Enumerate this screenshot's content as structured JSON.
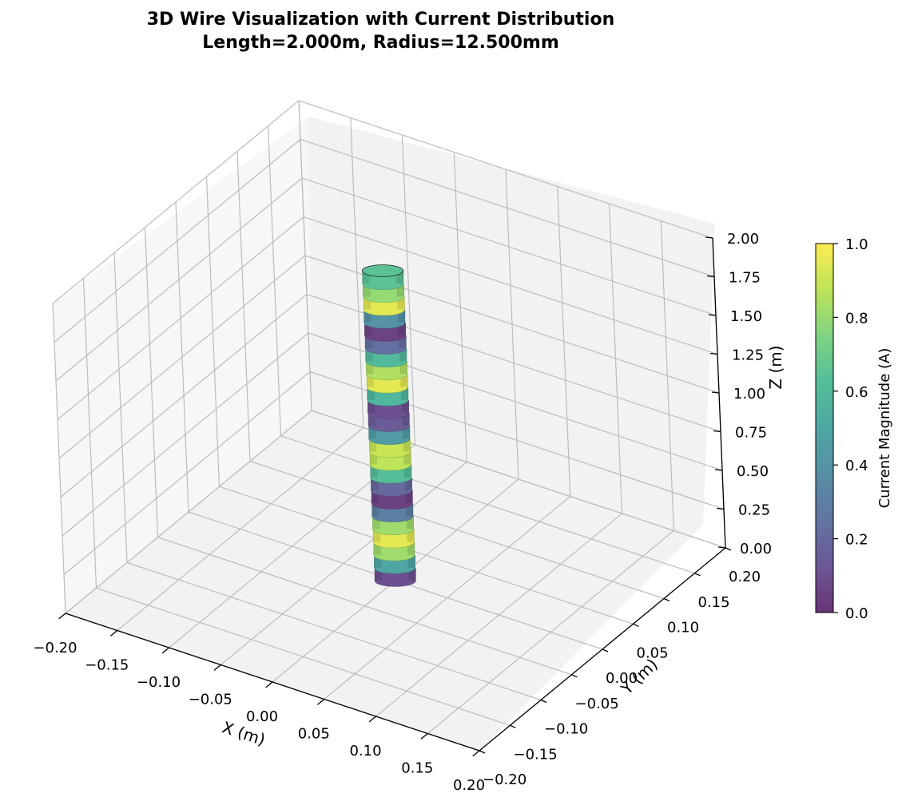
{
  "chart_data": {
    "type": "3d-surface",
    "title": "3D Wire Visualization with Current Distribution",
    "subtitle": "Length=2.000m, Radius=12.500mm",
    "xlabel": "X (m)",
    "ylabel": "Y (m)",
    "zlabel": "Z (m)",
    "xlim": [
      -0.2,
      0.2
    ],
    "ylim": [
      -0.2,
      0.2
    ],
    "zlim": [
      0.0,
      2.0
    ],
    "x_ticks": [
      -0.2,
      -0.15,
      -0.1,
      -0.05,
      0.0,
      0.05,
      0.1,
      0.15,
      0.2
    ],
    "y_ticks": [
      -0.2,
      -0.15,
      -0.1,
      -0.05,
      0.0,
      0.05,
      0.1,
      0.15,
      0.2
    ],
    "z_ticks": [
      0.0,
      0.25,
      0.5,
      0.75,
      1.0,
      1.25,
      1.5,
      1.75,
      2.0
    ],
    "x_tick_labels": [
      "−0.20",
      "−0.15",
      "−0.10",
      "−0.05",
      "0.00",
      "0.05",
      "0.10",
      "0.15",
      "0.20"
    ],
    "y_tick_labels": [
      "−0.20",
      "−0.15",
      "−0.10",
      "−0.05",
      "0.00",
      "0.05",
      "0.10",
      "0.15",
      "0.20"
    ],
    "z_tick_labels": [
      "0.00",
      "0.25",
      "0.50",
      "0.75",
      "1.00",
      "1.25",
      "1.50",
      "1.75",
      "2.00"
    ],
    "grid": true,
    "wire": {
      "length_m": 2.0,
      "radius_m": 0.0125,
      "center_x": 0.0,
      "center_y": 0.0,
      "segment_values": [
        0.1,
        0.5,
        0.82,
        0.95,
        0.82,
        0.3,
        0.05,
        0.2,
        0.62,
        0.88,
        0.9,
        0.45,
        0.15,
        0.1,
        0.58,
        0.95,
        0.85,
        0.6,
        0.22,
        0.05,
        0.4,
        0.95,
        0.8,
        0.65
      ]
    },
    "colorbar": {
      "label": "Current Magnitude (A)",
      "colormap": "viridis",
      "alpha": 0.8,
      "range": [
        0.0,
        1.0
      ],
      "ticks": [
        0.0,
        0.2,
        0.4,
        0.6,
        0.8,
        1.0
      ],
      "tick_labels": [
        "0.0",
        "0.2",
        "0.4",
        "0.6",
        "0.8",
        "1.0"
      ]
    }
  }
}
